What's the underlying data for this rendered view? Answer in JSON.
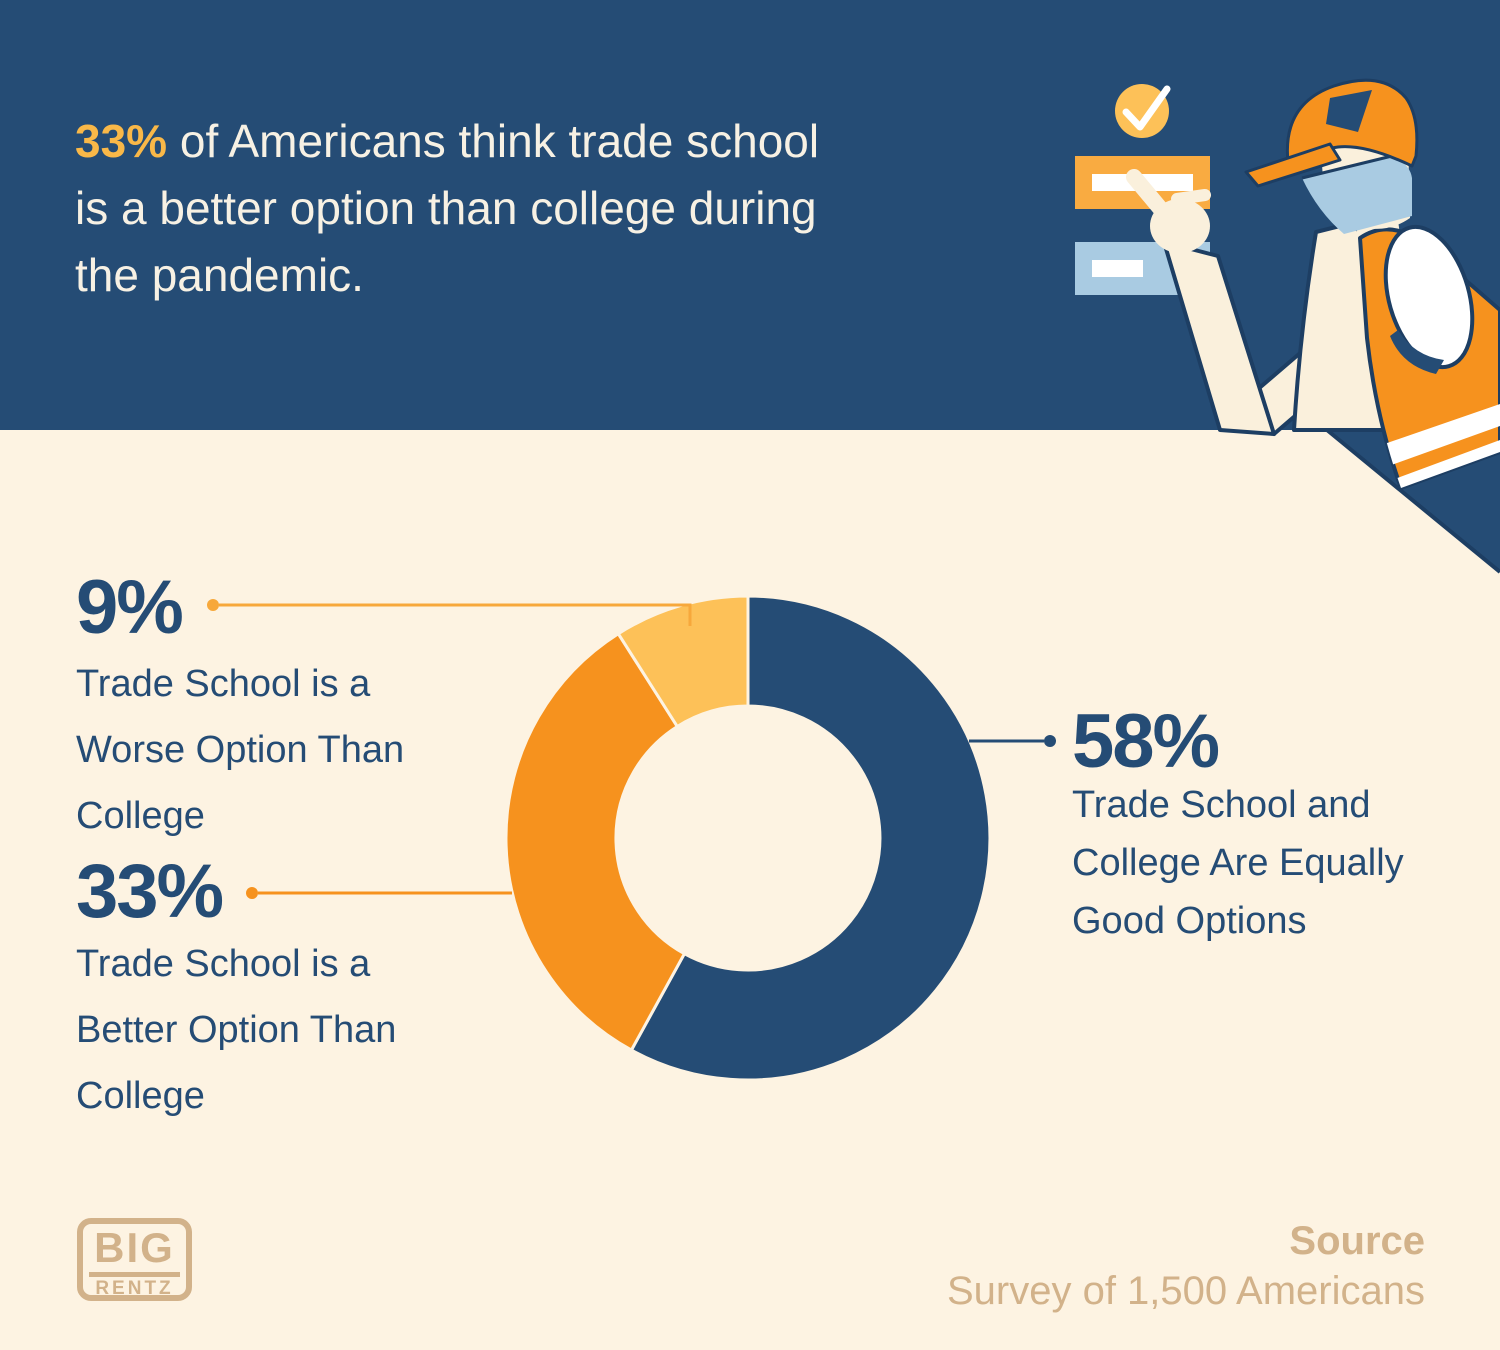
{
  "colors": {
    "brand_blue": "#254c75",
    "navy_outline": "#1d3e63",
    "cream": "#fdf3e2",
    "cream_figure": "#faf0dc",
    "orange": "#f6921e",
    "yellow": "#fdc158",
    "light_blue": "#a9cbe2",
    "white": "#ffffff",
    "tan": "#d2b28a",
    "header_stat_yellow": "#f9b848",
    "checklist_orange": "#f9ab41",
    "callout_yellow": "#f7a83b"
  },
  "header": {
    "stat": "33%",
    "line1_rest": " of Americans think trade school",
    "line2": "is a better option than college during",
    "line3": "the pandemic."
  },
  "chart_data": {
    "type": "pie",
    "subtype": "donut",
    "title": "33% of Americans think trade school is a better option than college during the pandemic.",
    "start": "12 o'clock, clockwise",
    "inner_radius_ratio": 0.55,
    "legend_position": "callout labels",
    "segments": [
      {
        "label": "Trade School and College Are Equally Good Options",
        "value": 58,
        "color": "#254c75"
      },
      {
        "label": "Trade School is a Better Option Than College",
        "value": 33,
        "color": "#f6921e"
      },
      {
        "label": "Trade School is a Worse Option Than College",
        "value": 9,
        "color": "#fdc158"
      }
    ],
    "source": "Survey of 1,500 Americans"
  },
  "labels": {
    "worse": {
      "pct": "9%",
      "lines": [
        "Trade School is a",
        "Worse Option Than",
        "College"
      ]
    },
    "better": {
      "pct": "33%",
      "lines": [
        "Trade School is a",
        "Better Option Than",
        "College"
      ]
    },
    "equal": {
      "pct": "58%",
      "lines": [
        "Trade School and",
        "College Are Equally",
        "Good Options"
      ]
    }
  },
  "footer": {
    "logo_top": "BIG",
    "logo_bottom": "RENTZ",
    "source_label": "Source",
    "source_text": "Survey of 1,500 Americans"
  }
}
